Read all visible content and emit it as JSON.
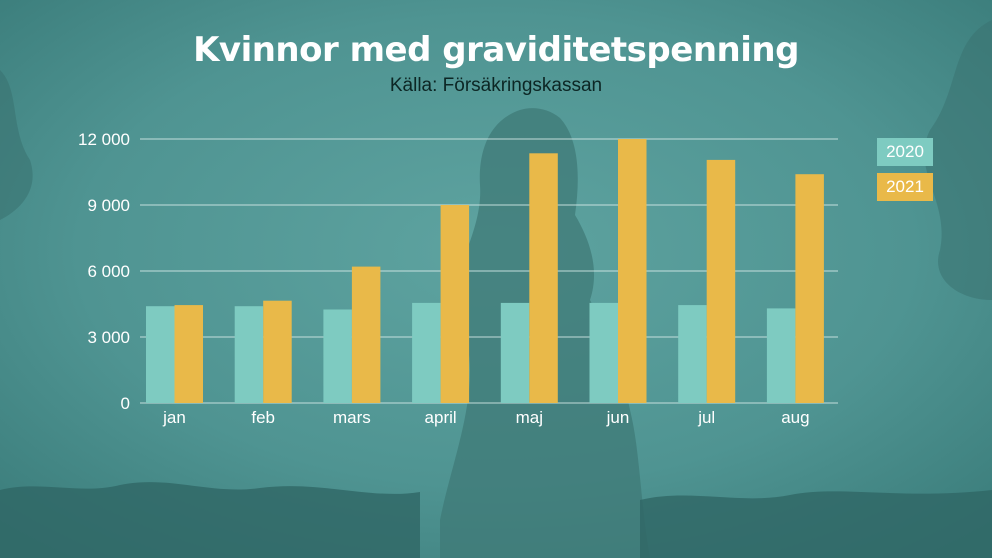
{
  "title": "Kvinnor med graviditetspenning",
  "subtitle": "Källa: Försäkringskassan",
  "colors": {
    "background": "#4f9492",
    "background_dark": "#2f6765",
    "silhouette": "#3f7977",
    "title_text": "#ffffff",
    "subtitle_text": "#0c2624",
    "axis_text": "#ffffff",
    "gridline": "#d9ecea",
    "series_2020": "#7ecbc1",
    "series_2021": "#e9b949"
  },
  "chart_data": {
    "type": "bar",
    "categories": [
      "jan",
      "feb",
      "mars",
      "april",
      "maj",
      "jun",
      "jul",
      "aug"
    ],
    "series": [
      {
        "name": "2020",
        "values": [
          4400,
          4400,
          4250,
          4550,
          4550,
          4550,
          4450,
          4300
        ]
      },
      {
        "name": "2021",
        "values": [
          4450,
          4650,
          6200,
          9000,
          11350,
          12000,
          11050,
          10400
        ]
      }
    ],
    "ylim": [
      0,
      12000
    ],
    "yticks": [
      0,
      3000,
      6000,
      9000,
      12000
    ],
    "ytick_labels": [
      "0",
      "3 000",
      "6 000",
      "9 000",
      "12 000"
    ],
    "grid": true,
    "legend": "right"
  }
}
